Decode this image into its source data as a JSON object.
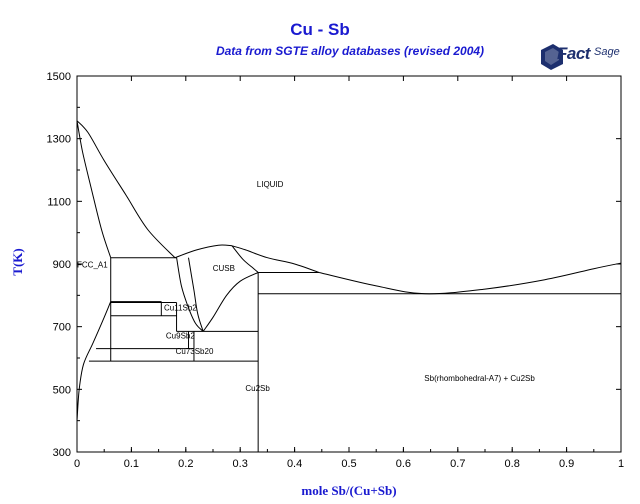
{
  "header": {
    "title": "Cu - Sb",
    "subtitle": "Data from SGTE alloy databases (revised 2004)",
    "logo_main": "Fact",
    "logo_sage": "Sage"
  },
  "chart_data": {
    "type": "phase-diagram",
    "xlabel": "mole Sb/(Cu+Sb)",
    "ylabel": "T(K)",
    "xlim": [
      0,
      1
    ],
    "ylim": [
      300,
      1500
    ],
    "x_ticks": [
      "0",
      "0.1",
      "0.2",
      "0.3",
      "0.4",
      "0.5",
      "0.6",
      "0.7",
      "0.8",
      "0.9",
      "1"
    ],
    "y_ticks": [
      "300",
      "500",
      "700",
      "900",
      "1100",
      "1300",
      "1500"
    ],
    "region_labels": [
      "LIQUID",
      "FCC_A1",
      "CUSB",
      "Cu11Sb2",
      "Cu9Sb2",
      "Cu73Sb20",
      "Cu2Sb",
      "Sb(rhombohedral-A7) + Cu2Sb"
    ],
    "invariant_lines": [
      {
        "x": [
          0.062,
          0.183
        ],
        "y": 920
      },
      {
        "x": [
          0.062,
          0.155
        ],
        "y": 780
      },
      {
        "x": [
          0.062,
          0.183
        ],
        "y": 777
      },
      {
        "x": [
          0.062,
          0.183
        ],
        "y": 735
      },
      {
        "x": [
          0.183,
          0.333
        ],
        "y": 685
      },
      {
        "x": [
          0.035,
          0.215
        ],
        "y": 630
      },
      {
        "x": [
          0.022,
          0.333
        ],
        "y": 590
      },
      {
        "x": [
          0.333,
          0.445
        ],
        "y": 873
      },
      {
        "x": [
          0.333,
          1.0
        ],
        "y": 805
      }
    ],
    "boundaries": [
      {
        "name": "fcc-liquidus",
        "x": [
          0,
          0.02,
          0.05,
          0.09,
          0.13,
          0.18
        ],
        "y": [
          1357,
          1320,
          1230,
          1120,
          1010,
          920
        ]
      },
      {
        "name": "fcc-solidus",
        "x": [
          0,
          0.01,
          0.025,
          0.045,
          0.062
        ],
        "y": [
          1357,
          1260,
          1150,
          1010,
          920
        ]
      },
      {
        "name": "fcc-solvus",
        "x": [
          0,
          0.004,
          0.012,
          0.03,
          0.05,
          0.062
        ],
        "y": [
          400,
          500,
          580,
          650,
          730,
          780
        ]
      },
      {
        "name": "cusb-liquidus-left",
        "x": [
          0.18,
          0.22,
          0.26,
          0.285
        ],
        "y": [
          920,
          945,
          960,
          958
        ]
      },
      {
        "name": "cusb-liquidus-right",
        "x": [
          0.285,
          0.31,
          0.35,
          0.4,
          0.445
        ],
        "y": [
          958,
          945,
          920,
          900,
          873
        ]
      },
      {
        "name": "sb-liquidus",
        "x": [
          0.445,
          0.55,
          0.64,
          0.75,
          0.86,
          0.95,
          1.0
        ],
        "y": [
          873,
          830,
          805,
          820,
          850,
          885,
          903
        ]
      },
      {
        "name": "cusb-left-1",
        "x": [
          0.183,
          0.192,
          0.205,
          0.218,
          0.232
        ],
        "y": [
          920,
          830,
          760,
          710,
          685
        ]
      },
      {
        "name": "cusb-left-2",
        "x": [
          0.205,
          0.215,
          0.222,
          0.232
        ],
        "y": [
          920,
          815,
          740,
          685
        ]
      },
      {
        "name": "cusb-right-1",
        "x": [
          0.232,
          0.25,
          0.275,
          0.3,
          0.333
        ],
        "y": [
          685,
          730,
          800,
          845,
          873
        ]
      },
      {
        "name": "cusb-right-2",
        "x": [
          0.285,
          0.305,
          0.325,
          0.333
        ],
        "y": [
          958,
          915,
          885,
          873
        ]
      }
    ],
    "verticals": [
      {
        "x": 0.062,
        "y": [
          590,
          920
        ]
      },
      {
        "x": 0.155,
        "y": [
          735,
          780
        ]
      },
      {
        "x": 0.183,
        "y": [
          685,
          777
        ]
      },
      {
        "x": 0.205,
        "y": [
          630,
          685
        ]
      },
      {
        "x": 0.215,
        "y": [
          590,
          685
        ]
      },
      {
        "x": 0.333,
        "y": [
          300,
          873
        ]
      }
    ]
  }
}
